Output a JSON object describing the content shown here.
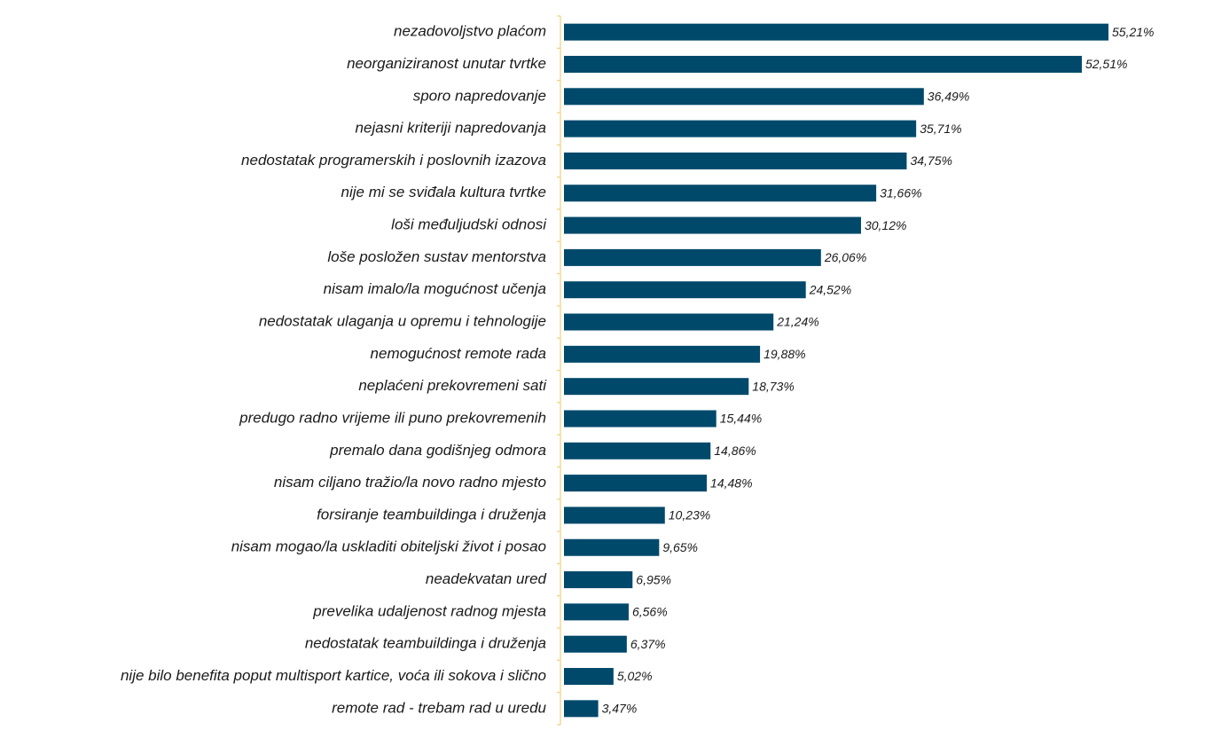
{
  "chart_data": {
    "type": "bar",
    "orientation": "horizontal",
    "color": "#00496b",
    "categories": [
      "nezadovoljstvo plaćom",
      "neorganiziranost unutar tvrtke",
      "sporo napredovanje",
      "nejasni kriteriji napredovanja",
      "nedostatak programerskih i poslovnih izazova",
      "nije mi se sviđala kultura tvrtke",
      "loši međuljudski odnosi",
      "loše posložen sustav mentorstva",
      "nisam imalo/la mogućnost učenja",
      "nedostatak ulaganja u opremu i tehnologije",
      "nemogućnost remote rada",
      "neplaćeni prekovremeni sati",
      "predugo radno vrijeme ili puno prekovremenih",
      "premalo dana godišnjeg odmora",
      "nisam ciljano tražio/la novo radno mjesto",
      "forsiranje teambuildinga i druženja",
      "nisam mogao/la uskladiti obiteljski život i posao",
      "neadekvatan ured",
      "prevelika udaljenost radnog mjesta",
      "nedostatak teambuildinga i druženja",
      "nije bilo benefita poput multisport kartice, voća ili sokova i slično",
      "remote rad - trebam rad u uredu"
    ],
    "values": [
      55.21,
      52.51,
      36.49,
      35.71,
      34.75,
      31.66,
      30.12,
      26.06,
      24.52,
      21.24,
      19.88,
      18.73,
      15.44,
      14.86,
      14.48,
      10.23,
      9.65,
      6.95,
      6.56,
      6.37,
      5.02,
      3.47
    ],
    "value_labels": [
      "55,21%",
      "52,51%",
      "36,49%",
      "35,71%",
      "34,75%",
      "31,66%",
      "30,12%",
      "26,06%",
      "24,52%",
      "21,24%",
      "19,88%",
      "18,73%",
      "15,44%",
      "14,86%",
      "14,48%",
      "10,23%",
      "9,65%",
      "6,95%",
      "6,56%",
      "6,37%",
      "5,02%",
      "3,47%"
    ]
  }
}
